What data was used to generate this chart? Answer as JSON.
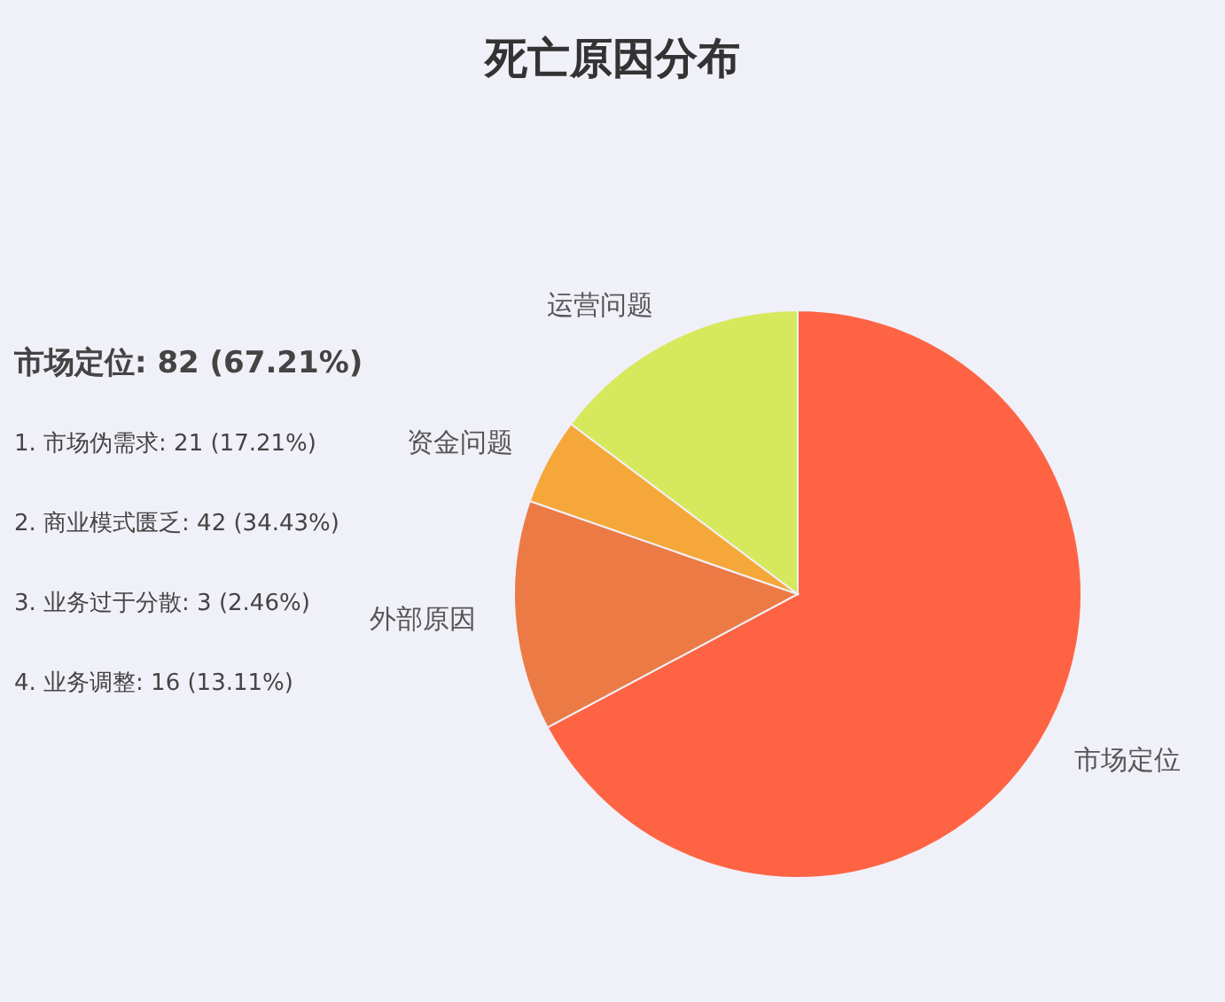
{
  "chart_data": {
    "type": "pie",
    "title": "死亡原因分布",
    "categories": [
      "市场定位",
      "外部原因",
      "资金问题",
      "运营问题"
    ],
    "values": [
      67.21,
      13.11,
      4.92,
      14.76
    ],
    "colors": [
      "#fe6443",
      "#ec7a45",
      "#f6a739",
      "#d6e95c"
    ],
    "legend": false,
    "annotations": [
      "市场定位: 82 (67.21%)",
      "1. 市场伪需求: 21 (17.21%)",
      "2. 商业模式匮乏: 42 (34.43%)",
      "3. 业务过于分散: 3 (2.46%)",
      "4. 业务调整: 16 (13.11%)"
    ]
  }
}
